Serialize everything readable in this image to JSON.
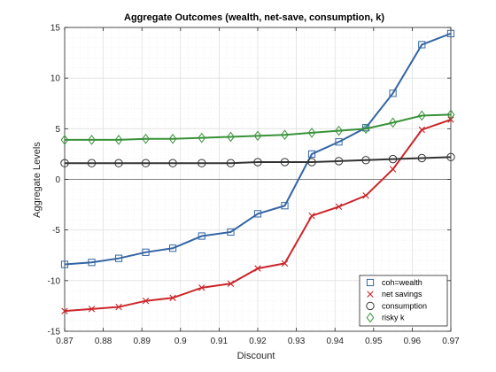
{
  "chart_data": {
    "type": "line",
    "title": "Aggregate Outcomes (wealth, net-save, consumption, k)",
    "xlabel": "Discount",
    "ylabel": "Aggregate Levels",
    "xlim": [
      0.87,
      0.97
    ],
    "ylim": [
      -15,
      15
    ],
    "xticks": [
      "0.87",
      "0.88",
      "0.89",
      "0.9",
      "0.91",
      "0.92",
      "0.93",
      "0.94",
      "0.95",
      "0.96",
      "0.97"
    ],
    "yticks": [
      "-15",
      "-10",
      "-5",
      "0",
      "5",
      "10",
      "15"
    ],
    "grid": true,
    "minor_grid": true,
    "zero_line": true,
    "legend_location": "bottom-right",
    "x": [
      0.87,
      0.877,
      0.884,
      0.891,
      0.898,
      0.9055,
      0.913,
      0.92,
      0.927,
      0.934,
      0.941,
      0.948,
      0.955,
      0.9625,
      0.97
    ],
    "series": [
      {
        "name": "coh=wealth",
        "color": "#3465a4",
        "marker": "square",
        "values": [
          -8.4,
          -8.2,
          -7.8,
          -7.2,
          -6.8,
          -5.6,
          -5.2,
          -3.4,
          -2.6,
          2.5,
          3.7,
          5.1,
          8.5,
          13.3,
          14.4
        ]
      },
      {
        "name": "net savings",
        "color": "#cc2529",
        "marker": "x",
        "values": [
          -13.0,
          -12.8,
          -12.6,
          -12.0,
          -11.7,
          -10.7,
          -10.3,
          -8.8,
          -8.3,
          -3.6,
          -2.7,
          -1.6,
          1.0,
          4.9,
          5.9
        ]
      },
      {
        "name": "consumption",
        "color": "#333333",
        "marker": "circle",
        "values": [
          1.6,
          1.6,
          1.6,
          1.6,
          1.6,
          1.6,
          1.6,
          1.7,
          1.7,
          1.7,
          1.8,
          1.9,
          2.0,
          2.1,
          2.2
        ]
      },
      {
        "name": "risky k",
        "color": "#3a923a",
        "marker": "diamond",
        "values": [
          3.9,
          3.9,
          3.9,
          4.0,
          4.0,
          4.1,
          4.2,
          4.3,
          4.4,
          4.6,
          4.8,
          5.0,
          5.6,
          6.3,
          6.4
        ]
      }
    ]
  }
}
